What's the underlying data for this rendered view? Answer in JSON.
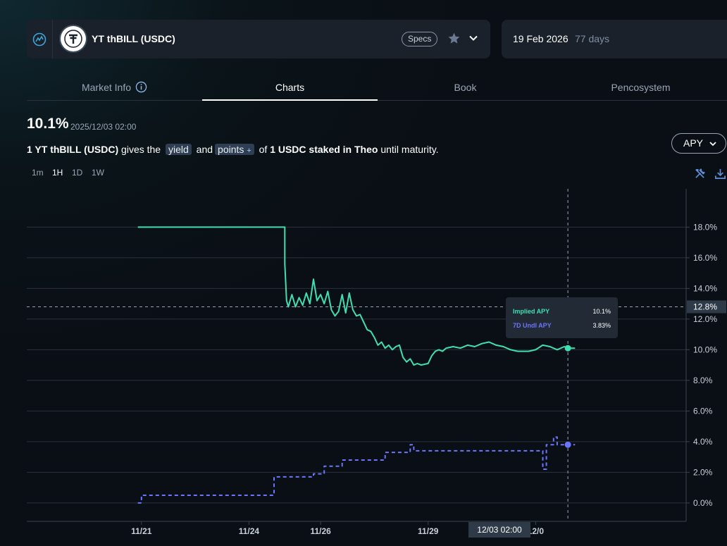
{
  "header": {
    "market_title": "YT thBILL (USDC)",
    "specs_label": "Specs",
    "maturity_date": "19 Feb 2026",
    "days_left": "77 days"
  },
  "tabs": [
    {
      "label": "Market Info",
      "active": false
    },
    {
      "label": "Charts",
      "active": true
    },
    {
      "label": "Book",
      "active": false
    },
    {
      "label": "Pencosystem",
      "active": false
    }
  ],
  "summary": {
    "value": "10.1%",
    "timestamp": "2025/12/03 02:00",
    "desc_strong1": "1 YT thBILL (USDC)",
    "desc_text1": "gives the",
    "chip_yield": "yield",
    "desc_text2": "and",
    "chip_points": "points",
    "desc_text3": "of",
    "desc_strong2": "1 USDC staked in Theo",
    "desc_text4": "until maturity."
  },
  "metric_selector": {
    "selected": "APY"
  },
  "timeframes": [
    {
      "label": "1m",
      "active": false
    },
    {
      "label": "1H",
      "active": true
    },
    {
      "label": "1D",
      "active": false
    },
    {
      "label": "1W",
      "active": false
    }
  ],
  "tooltip": {
    "rows": [
      {
        "name": "Implied APY",
        "value": "10.1%",
        "color": "#3fe0b0"
      },
      {
        "name": "7D Undl APY",
        "value": "3.83%",
        "color": "#6b75ff"
      }
    ]
  },
  "crosshair": {
    "x_label": "12/03 02:00",
    "y_label": "12.8%",
    "y_value": 12.8
  },
  "chart_data": {
    "type": "line",
    "y_ticks": [
      "0.0%",
      "2.0%",
      "4.0%",
      "6.0%",
      "8.0%",
      "10.0%",
      "12.0%",
      "14.0%",
      "16.0%",
      "18.0%"
    ],
    "y_tick_values": [
      0,
      2,
      4,
      6,
      8,
      10,
      12,
      14,
      16,
      18
    ],
    "ylim": [
      -1.2,
      20.5
    ],
    "x_ticks": [
      "11/21",
      "11/24",
      "11/26",
      "11/29",
      "12/0"
    ],
    "x_tick_values": [
      0,
      3,
      5,
      8,
      11
    ],
    "xlim": [
      -3.2,
      15.2
    ],
    "series": [
      {
        "name": "Implied APY",
        "color": "#3fe0b0",
        "style": "solid",
        "points": [
          [
            -0.1,
            18.0
          ],
          [
            4.0,
            18.0
          ],
          [
            4.0,
            15.6
          ],
          [
            4.05,
            13.2
          ],
          [
            4.1,
            12.8
          ],
          [
            4.2,
            13.6
          ],
          [
            4.3,
            12.8
          ],
          [
            4.4,
            13.4
          ],
          [
            4.5,
            12.9
          ],
          [
            4.6,
            13.7
          ],
          [
            4.7,
            13.0
          ],
          [
            4.8,
            14.6
          ],
          [
            4.9,
            13.2
          ],
          [
            5.0,
            13.6
          ],
          [
            5.1,
            13.0
          ],
          [
            5.2,
            13.8
          ],
          [
            5.3,
            12.6
          ],
          [
            5.4,
            12.2
          ],
          [
            5.5,
            12.5
          ],
          [
            5.6,
            13.6
          ],
          [
            5.7,
            12.4
          ],
          [
            5.8,
            13.7
          ],
          [
            5.9,
            12.6
          ],
          [
            6.0,
            12.2
          ],
          [
            6.1,
            12.3
          ],
          [
            6.2,
            11.8
          ],
          [
            6.3,
            11.3
          ],
          [
            6.4,
            11.2
          ],
          [
            6.5,
            10.8
          ],
          [
            6.6,
            10.3
          ],
          [
            6.7,
            10.5
          ],
          [
            6.8,
            10.1
          ],
          [
            6.9,
            10.3
          ],
          [
            7.0,
            10.0
          ],
          [
            7.1,
            10.2
          ],
          [
            7.2,
            10.3
          ],
          [
            7.3,
            9.5
          ],
          [
            7.4,
            9.2
          ],
          [
            7.5,
            9.4
          ],
          [
            7.6,
            9.0
          ],
          [
            7.7,
            9.1
          ],
          [
            7.8,
            9.0
          ],
          [
            8.0,
            9.1
          ],
          [
            8.1,
            9.6
          ],
          [
            8.2,
            9.9
          ],
          [
            8.3,
            10.0
          ],
          [
            8.4,
            9.9
          ],
          [
            8.5,
            10.1
          ],
          [
            8.7,
            10.2
          ],
          [
            8.9,
            10.1
          ],
          [
            9.1,
            10.3
          ],
          [
            9.3,
            10.2
          ],
          [
            9.5,
            10.4
          ],
          [
            9.7,
            10.5
          ],
          [
            9.9,
            10.3
          ],
          [
            10.1,
            10.2
          ],
          [
            10.3,
            10.0
          ],
          [
            10.5,
            9.9
          ],
          [
            10.8,
            9.9
          ],
          [
            11.0,
            10.0
          ],
          [
            11.2,
            10.3
          ],
          [
            11.4,
            10.2
          ],
          [
            11.6,
            10.0
          ],
          [
            11.8,
            10.2
          ],
          [
            11.9,
            10.1
          ],
          [
            12.1,
            10.1
          ]
        ]
      },
      {
        "name": "7D Undl APY",
        "color": "#6b75ff",
        "style": "dashed",
        "points": [
          [
            -0.1,
            0.0
          ],
          [
            0.0,
            0.0
          ],
          [
            0.0,
            0.5
          ],
          [
            3.7,
            0.5
          ],
          [
            3.7,
            1.7
          ],
          [
            4.8,
            1.7
          ],
          [
            4.8,
            1.9
          ],
          [
            5.1,
            1.9
          ],
          [
            5.1,
            2.4
          ],
          [
            5.6,
            2.4
          ],
          [
            5.6,
            2.8
          ],
          [
            6.8,
            2.8
          ],
          [
            6.8,
            3.3
          ],
          [
            7.5,
            3.3
          ],
          [
            7.5,
            3.8
          ],
          [
            7.6,
            3.8
          ],
          [
            7.6,
            3.4
          ],
          [
            11.2,
            3.4
          ],
          [
            11.2,
            2.2
          ],
          [
            11.3,
            2.2
          ],
          [
            11.3,
            3.8
          ],
          [
            11.5,
            3.8
          ],
          [
            11.5,
            4.3
          ],
          [
            11.6,
            4.3
          ],
          [
            11.6,
            3.8
          ],
          [
            12.1,
            3.8
          ]
        ]
      }
    ],
    "crosshair_x": 11.9
  }
}
